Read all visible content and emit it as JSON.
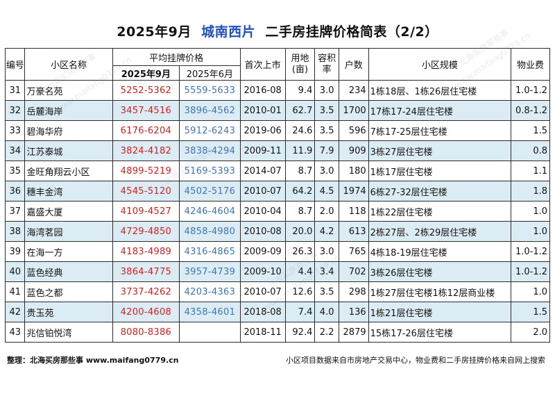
{
  "title": {
    "prefix": "2025年9月",
    "highlight": "城南西片",
    "suffix": "二手房挂牌价格简表（2/2）"
  },
  "headers": {
    "no": "编号",
    "name": "小区名称",
    "price_group": "平均挂牌价格",
    "price_sep": "2025年9月",
    "price_jun": "2025年6月",
    "first_listed": "首次上市",
    "land": "用地\n(亩)",
    "land_a": "用地",
    "land_b": "(亩)",
    "plot_a": "容积",
    "plot_b": "率",
    "units": "户数",
    "scale": "小区规模",
    "fee": "物业费"
  },
  "rows": [
    {
      "no": "31",
      "name": "万豪名苑",
      "p_sep": "5252-5362",
      "p_jun": "5559-5633",
      "first": "2016-08",
      "land": "9.4",
      "plot": "3.0",
      "units": "234",
      "scale": "1栋18层、1栋26层住宅楼",
      "fee": "1.0-1.2"
    },
    {
      "no": "32",
      "name": "岳麓海岸",
      "p_sep": "3457-4516",
      "p_jun": "3896-4562",
      "first": "2010-01",
      "land": "62.7",
      "plot": "3.5",
      "units": "1700",
      "scale": "17栋17-24层住宅楼",
      "fee": "0.8-1.2"
    },
    {
      "no": "33",
      "name": "碧海华府",
      "p_sep": "6176-6204",
      "p_jun": "5912-6243",
      "first": "2019-06",
      "land": "24.6",
      "plot": "3.5",
      "units": "596",
      "scale": "7栋17-25层住宅楼",
      "fee": "1.5"
    },
    {
      "no": "34",
      "name": "江苏泰城",
      "p_sep": "3824-4182",
      "p_jun": "3838-4294",
      "first": "2009-11",
      "land": "11.9",
      "plot": "7.9",
      "units": "909",
      "scale": "3栋27层住宅楼",
      "fee": "0.8"
    },
    {
      "no": "35",
      "name": "金旺角翔云小区",
      "p_sep": "4899-5219",
      "p_jun": "5169-5393",
      "first": "2014-07",
      "land": "8.7",
      "plot": "3.0",
      "units": "180",
      "scale": "1栋17层住宅楼",
      "fee": "1.1"
    },
    {
      "no": "36",
      "name": "穗丰金湾",
      "p_sep": "4545-5120",
      "p_jun": "4502-5176",
      "first": "2010-07",
      "land": "64.2",
      "plot": "4.5",
      "units": "1974",
      "scale": "6栋27-32层住宅楼",
      "fee": "1.8"
    },
    {
      "no": "37",
      "name": "嘉盛大厦",
      "p_sep": "4109-4527",
      "p_jun": "4246-4604",
      "first": "2010-04",
      "land": "8.7",
      "plot": "2.0",
      "units": "118",
      "scale": "1栋22层住宅楼",
      "fee": "1.0"
    },
    {
      "no": "38",
      "name": "海湾茗园",
      "p_sep": "4729-4850",
      "p_jun": "4858-4980",
      "first": "2010-08",
      "land": "20.0",
      "plot": "4.2",
      "units": "613",
      "scale": "2栋27层、2栋29层住宅楼",
      "fee": "1.0"
    },
    {
      "no": "39",
      "name": "在海一方",
      "p_sep": "4183-4989",
      "p_jun": "4316-4865",
      "first": "2009-09",
      "land": "26.3",
      "plot": "3.0",
      "units": "765",
      "scale": "4栋18-19层住宅楼",
      "fee": "1.0-1.2"
    },
    {
      "no": "40",
      "name": "蓝色经典",
      "p_sep": "3864-4775",
      "p_jun": "3957-4739",
      "first": "2009-10",
      "land": "4.4",
      "plot": "3.4",
      "units": "702",
      "scale": "3栋26层住宅楼",
      "fee": "1.0-1.2"
    },
    {
      "no": "41",
      "name": "蓝色之都",
      "p_sep": "3737-4262",
      "p_jun": "4203-4363",
      "first": "2010-07",
      "land": "12.6",
      "plot": "3.5",
      "units": "298",
      "scale": "1栋27层住宅楼1栋12层商业楼",
      "fee": "1.0"
    },
    {
      "no": "42",
      "name": "贵玉苑",
      "p_sep": "4200-4608",
      "p_jun": "4358-4601",
      "first": "2018-08",
      "land": "7.4",
      "plot": "4.0",
      "units": "136",
      "scale": "1栋21层住宅楼",
      "fee": "1.5"
    },
    {
      "no": "43",
      "name": "兆信铂悦湾",
      "p_sep": "8080-8386",
      "p_jun": "",
      "first": "2018-11",
      "land": "92.4",
      "plot": "2.2",
      "units": "2879",
      "scale": "15栋17-26层住宅楼",
      "fee": "2.0"
    }
  ],
  "footer": {
    "left": "整理：北海买房那些事 www.maifang0779.cn",
    "right": "小区项目数据来自市房地产交易中心，物业费和二手房挂牌价格来自网上搜索"
  },
  "watermark": {
    "text_cn": "北海买房那些事",
    "text_url": "www.maifang0779.cn"
  }
}
